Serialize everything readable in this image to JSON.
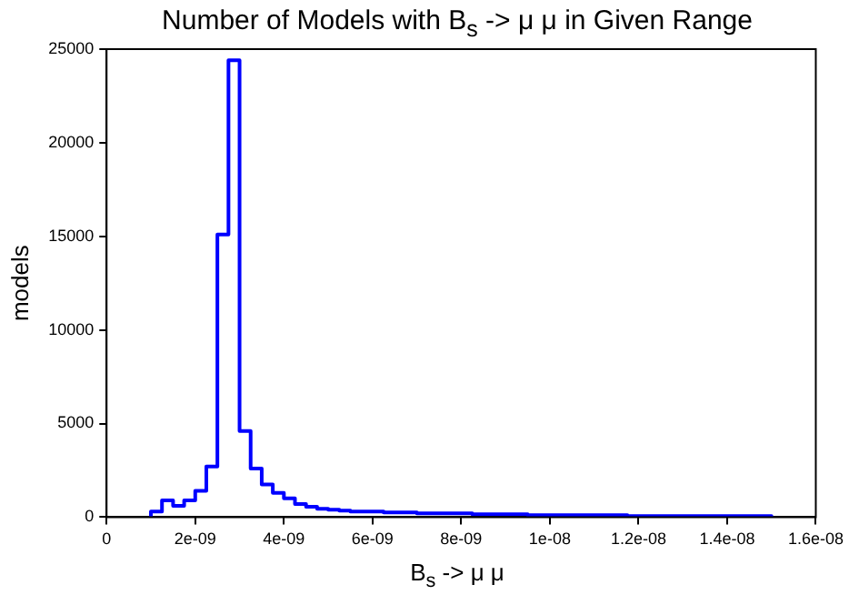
{
  "chart_data": {
    "type": "histogram",
    "title": "Number of Models with B$_{s}$ -> μ μ in Given Range",
    "xlabel": "B$_{s}$ -> μ μ",
    "ylabel": "models",
    "bins": [
      1e-09,
      1.25e-09,
      1.5e-09,
      1.75e-09,
      2e-09,
      2.25e-09,
      2.5e-09,
      2.75e-09,
      3e-09,
      3.25e-09,
      3.5e-09,
      3.75e-09,
      4e-09,
      4.25e-09,
      4.5e-09,
      4.75e-09,
      5e-09,
      5.25e-09,
      5.5e-09,
      5.75e-09,
      6e-09,
      6.25e-09,
      6.5e-09,
      6.75e-09,
      7e-09,
      7.25e-09,
      7.5e-09,
      7.75e-09,
      8e-09,
      8.25e-09,
      8.5e-09,
      8.75e-09,
      9e-09,
      9.25e-09,
      9.5e-09,
      9.75e-09,
      1e-08,
      1.025e-08,
      1.05e-08,
      1.075e-08,
      1.1e-08,
      1.125e-08,
      1.15e-08,
      1.175e-08,
      1.2e-08,
      1.225e-08,
      1.25e-08,
      1.275e-08,
      1.3e-08,
      1.325e-08,
      1.35e-08,
      1.375e-08,
      1.4e-08,
      1.425e-08,
      1.45e-08,
      1.475e-08,
      1.5e-08
    ],
    "values": [
      300,
      900,
      600,
      900,
      1400,
      2700,
      15100,
      24400,
      4600,
      2600,
      1750,
      1300,
      1000,
      700,
      550,
      450,
      400,
      350,
      300,
      300,
      300,
      250,
      250,
      250,
      200,
      200,
      200,
      200,
      200,
      150,
      150,
      150,
      150,
      150,
      100,
      100,
      100,
      100,
      100,
      100,
      100,
      100,
      100,
      50,
      50,
      50,
      50,
      50,
      50,
      50,
      50,
      50,
      50,
      50,
      50,
      50
    ],
    "color": "#0000ff",
    "xlim": [
      0,
      1.6e-08
    ],
    "xticks": [
      0,
      {
        "value": 2e-09,
        "label": "2e-09"
      },
      {
        "value": 4e-09,
        "label": "4e-09"
      },
      {
        "value": 6e-09,
        "label": "6e-09"
      },
      {
        "value": 8e-09,
        "label": "8e-09"
      },
      {
        "value": 1e-08,
        "label": "1e-08"
      },
      {
        "value": 1.2e-08,
        "label": "1.2e-08"
      },
      {
        "value": 1.4e-08,
        "label": "1.4e-08"
      },
      {
        "value": 1.6e-08,
        "label": "1.6e-08"
      }
    ],
    "ylim": [
      0,
      25000
    ],
    "yticks": [
      0,
      5000,
      10000,
      15000,
      20000,
      25000
    ],
    "grid": false,
    "legend": false
  }
}
